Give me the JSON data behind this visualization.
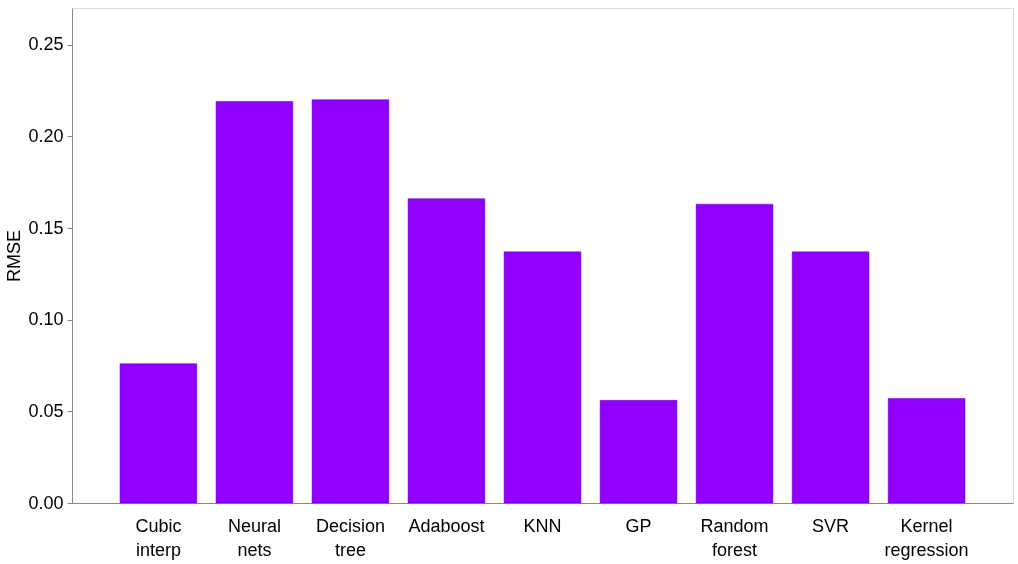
{
  "chart_data": {
    "type": "bar",
    "ylabel": "RMSE",
    "categories": [
      "Cubic interp",
      "Neural nets",
      "Decision tree",
      "Adaboost",
      "KNN",
      "GP",
      "Random forest",
      "SVR",
      "Kernel regression"
    ],
    "values": [
      0.076,
      0.219,
      0.22,
      0.166,
      0.137,
      0.056,
      0.163,
      0.137,
      0.057
    ],
    "color": "#8f00ff",
    "ylim": [
      0,
      0.27
    ],
    "yticks": [
      {
        "value": 0,
        "label": "0.00"
      },
      {
        "value": 0.05,
        "label": "0.05"
      },
      {
        "value": 0.1,
        "label": "0.10"
      },
      {
        "value": 0.15,
        "label": "0.15"
      },
      {
        "value": 0.2,
        "label": "0.20"
      },
      {
        "value": 0.25,
        "label": "0.25"
      }
    ],
    "grid": false
  }
}
